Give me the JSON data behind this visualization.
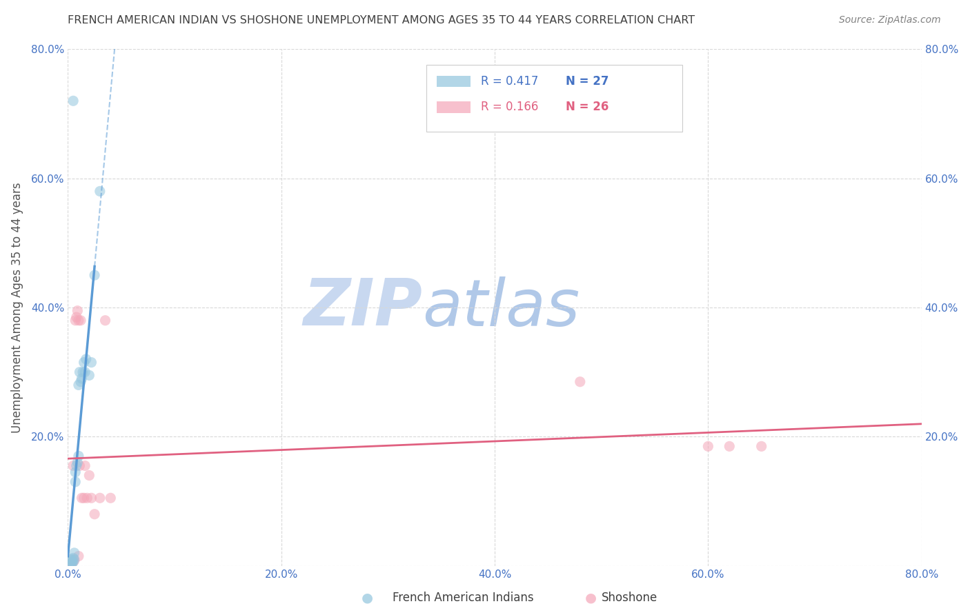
{
  "title": "FRENCH AMERICAN INDIAN VS SHOSHONE UNEMPLOYMENT AMONG AGES 35 TO 44 YEARS CORRELATION CHART",
  "source": "Source: ZipAtlas.com",
  "ylabel": "Unemployment Among Ages 35 to 44 years",
  "xlim": [
    0.0,
    0.8
  ],
  "ylim": [
    0.0,
    0.8
  ],
  "xticks": [
    0.0,
    0.2,
    0.4,
    0.6,
    0.8
  ],
  "yticks": [
    0.2,
    0.4,
    0.6,
    0.8
  ],
  "xticklabels": [
    "0.0%",
    "20.0%",
    "40.0%",
    "60.0%",
    "80.0%"
  ],
  "yticklabels": [
    "20.0%",
    "40.0%",
    "60.0%",
    "80.0%"
  ],
  "right_yticks": [
    0.2,
    0.4,
    0.6,
    0.8
  ],
  "right_yticklabels": [
    "20.0%",
    "40.0%",
    "60.0%",
    "80.0%"
  ],
  "legend_r1": "R = 0.417",
  "legend_n1": "N = 27",
  "legend_r2": "R = 0.166",
  "legend_n2": "N = 26",
  "color_blue": "#92c5de",
  "color_blue_edge": "#6baed6",
  "color_pink": "#f4a6b8",
  "color_pink_edge": "#e87ca0",
  "color_blue_line": "#5b9bd5",
  "color_pink_line": "#e06080",
  "color_blue_text": "#4472c4",
  "color_pink_text": "#e06080",
  "color_title": "#404040",
  "color_source": "#808080",
  "color_grid": "#d8d8d8",
  "color_watermark_zip": "#c8d8f0",
  "color_watermark_atlas": "#b0c8e8",
  "french_x": [
    0.002,
    0.003,
    0.003,
    0.004,
    0.004,
    0.005,
    0.005,
    0.006,
    0.006,
    0.007,
    0.007,
    0.008,
    0.009,
    0.01,
    0.01,
    0.011,
    0.012,
    0.013,
    0.014,
    0.015,
    0.016,
    0.017,
    0.02,
    0.022,
    0.025,
    0.03,
    0.005
  ],
  "french_y": [
    0.002,
    0.005,
    0.01,
    0.004,
    0.008,
    0.006,
    0.012,
    0.01,
    0.02,
    0.13,
    0.145,
    0.155,
    0.16,
    0.17,
    0.28,
    0.3,
    0.285,
    0.29,
    0.3,
    0.315,
    0.3,
    0.32,
    0.295,
    0.315,
    0.45,
    0.58,
    0.72
  ],
  "shoshone_x": [
    0.003,
    0.004,
    0.005,
    0.005,
    0.006,
    0.007,
    0.008,
    0.009,
    0.01,
    0.01,
    0.011,
    0.012,
    0.013,
    0.015,
    0.016,
    0.018,
    0.02,
    0.022,
    0.025,
    0.03,
    0.035,
    0.04,
    0.6,
    0.62,
    0.65,
    0.48
  ],
  "shoshone_y": [
    0.002,
    0.005,
    0.01,
    0.155,
    0.008,
    0.38,
    0.385,
    0.395,
    0.38,
    0.015,
    0.155,
    0.38,
    0.105,
    0.105,
    0.155,
    0.105,
    0.14,
    0.105,
    0.08,
    0.105,
    0.38,
    0.105,
    0.185,
    0.185,
    0.185,
    0.285
  ],
  "marker_size": 120,
  "marker_alpha": 0.55,
  "watermark_zip": "ZIP",
  "watermark_atlas": "atlas"
}
